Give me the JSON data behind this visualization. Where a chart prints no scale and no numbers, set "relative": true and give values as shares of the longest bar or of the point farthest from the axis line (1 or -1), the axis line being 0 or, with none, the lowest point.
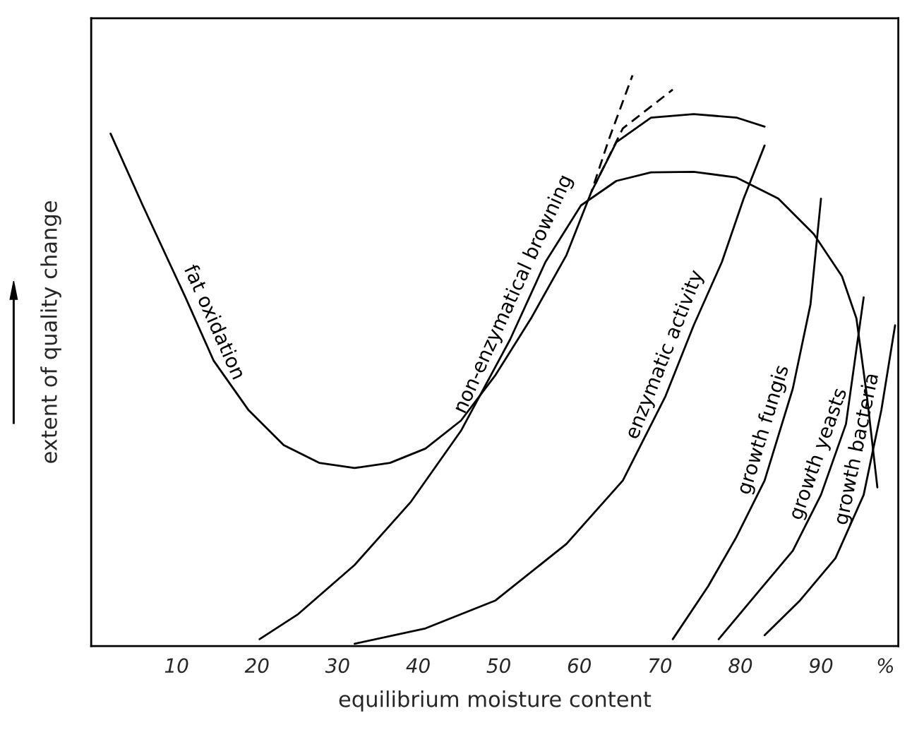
{
  "chart_data": {
    "type": "line",
    "relative": true,
    "xlabel": "equilibrium moisture content",
    "ylabel": "extent of quality change",
    "xlim": [
      -0.6,
      99.6
    ],
    "xticks": [
      10,
      20,
      30,
      40,
      50,
      60,
      70,
      80,
      90,
      {
        "value": 98,
        "label": "%"
      }
    ],
    "grid": false,
    "marker": "none",
    "series": [
      {
        "name": "fat oxidation",
        "color": "#000000",
        "line_style": "solid",
        "x": [
          1.8,
          5.8,
          11.1,
          14.6,
          18.9,
          23.3,
          27.7,
          32.1,
          36.5,
          40.9,
          45.3,
          49.6,
          54.0,
          58.4,
          61.5,
          64.6,
          68.9,
          74.2,
          79.5,
          83.0
        ],
        "values": [
          0.898,
          0.772,
          0.611,
          0.5,
          0.414,
          0.352,
          0.321,
          0.312,
          0.321,
          0.346,
          0.395,
          0.475,
          0.574,
          0.685,
          0.796,
          0.883,
          0.926,
          0.932,
          0.926,
          0.91
        ]
      },
      {
        "color": "#000000",
        "line_style": "dashed",
        "x": [
          61.5,
          63.7,
          66.6
        ],
        "values": [
          0.796,
          0.889,
          1.0
        ]
      },
      {
        "color": "#000000",
        "line_style": "dashed",
        "x": [
          62.0,
          65.4,
          71.6
        ],
        "values": [
          0.81,
          0.907,
          0.975
        ]
      },
      {
        "name": "non-enzymatical browning",
        "color": "#000000",
        "line_style": "solid",
        "x": [
          20.3,
          25.1,
          32.1,
          39.1,
          45.3,
          51.4,
          55.8,
          60.2,
          64.6,
          68.9,
          74.2,
          79.5,
          84.7,
          89.1,
          92.6,
          94.4,
          95.7,
          97.0
        ],
        "values": [
          0.012,
          0.056,
          0.142,
          0.253,
          0.377,
          0.537,
          0.673,
          0.772,
          0.815,
          0.83,
          0.831,
          0.821,
          0.784,
          0.722,
          0.648,
          0.574,
          0.438,
          0.278
        ]
      },
      {
        "name": "enzymatic activity",
        "color": "#000000",
        "line_style": "solid",
        "x": [
          32.1,
          40.9,
          49.6,
          58.4,
          65.4,
          70.7,
          74.2,
          77.7,
          80.4,
          83.0
        ],
        "values": [
          0.004,
          0.031,
          0.08,
          0.179,
          0.29,
          0.438,
          0.562,
          0.673,
          0.784,
          0.877
        ]
      },
      {
        "name": "growth fungis",
        "color": "#000000",
        "line_style": "solid",
        "x": [
          71.6,
          76.0,
          79.5,
          83.0,
          86.5,
          88.7,
          90.0
        ],
        "values": [
          0.012,
          0.105,
          0.191,
          0.29,
          0.451,
          0.599,
          0.784
        ]
      },
      {
        "name": "growth yeasts",
        "color": "#000000",
        "line_style": "solid",
        "x": [
          77.3,
          82.1,
          86.5,
          90.0,
          93.1,
          95.3
        ],
        "values": [
          0.012,
          0.093,
          0.167,
          0.265,
          0.389,
          0.611
        ]
      },
      {
        "name": "growth bacteria",
        "color": "#000000",
        "line_style": "solid",
        "x": [
          83.0,
          87.4,
          91.8,
          95.3,
          97.5,
          99.2
        ],
        "values": [
          0.019,
          0.08,
          0.154,
          0.265,
          0.414,
          0.562
        ]
      }
    ]
  }
}
